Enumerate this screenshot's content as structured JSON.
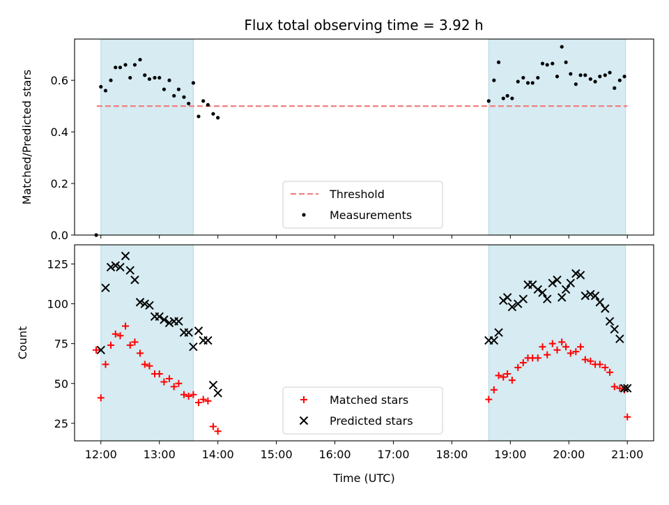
{
  "title": "Flux total observing time = 3.92 h",
  "colors": {
    "band": "#add8e6",
    "threshold": "#f08080",
    "measurement": "#000000",
    "matched": "#ff0000",
    "predicted": "#000000"
  },
  "chart_data": [
    {
      "type": "scatter",
      "name": "ratio-panel",
      "ylabel": "Matched/Predicted stars",
      "xlim": [
        11.55,
        21.45
      ],
      "ylim": [
        0.0,
        0.76
      ],
      "yticks": [
        "0.0",
        "0.2",
        "0.4",
        "0.6"
      ],
      "ytick_values": [
        0.0,
        0.2,
        0.4,
        0.6
      ],
      "grid": false,
      "shaded_ranges": [
        [
          12.0,
          13.58
        ],
        [
          18.63,
          20.97
        ]
      ],
      "threshold": {
        "name": "Threshold",
        "y": 0.5,
        "x_range": [
          11.93,
          21.0
        ],
        "style": "dashed"
      },
      "legend": {
        "placement": "bottom-center",
        "entries": [
          "Threshold",
          "Measurements"
        ]
      },
      "series": [
        {
          "name": "Measurements",
          "marker": "dot",
          "x": [
            11.92,
            12.0,
            12.08,
            12.17,
            12.25,
            12.33,
            12.42,
            12.5,
            12.58,
            12.67,
            12.75,
            12.83,
            12.92,
            13.0,
            13.08,
            13.17,
            13.25,
            13.33,
            13.42,
            13.5,
            13.58,
            13.67,
            13.75,
            13.83,
            13.92,
            14.0,
            18.63,
            18.72,
            18.8,
            18.88,
            18.95,
            19.03,
            19.13,
            19.22,
            19.3,
            19.38,
            19.47,
            19.55,
            19.63,
            19.72,
            19.8,
            19.88,
            19.95,
            20.03,
            20.12,
            20.2,
            20.28,
            20.37,
            20.45,
            20.53,
            20.62,
            20.7,
            20.78,
            20.87,
            20.95
          ],
          "y": [
            0.0,
            0.575,
            0.56,
            0.6,
            0.65,
            0.65,
            0.66,
            0.61,
            0.66,
            0.68,
            0.62,
            0.605,
            0.61,
            0.61,
            0.565,
            0.6,
            0.54,
            0.565,
            0.535,
            0.51,
            0.59,
            0.46,
            0.52,
            0.505,
            0.47,
            0.455,
            0.52,
            0.6,
            0.67,
            0.53,
            0.54,
            0.53,
            0.595,
            0.61,
            0.59,
            0.59,
            0.61,
            0.665,
            0.66,
            0.665,
            0.615,
            0.73,
            0.67,
            0.625,
            0.585,
            0.62,
            0.62,
            0.605,
            0.595,
            0.615,
            0.62,
            0.63,
            0.57,
            0.6,
            0.615
          ]
        }
      ]
    },
    {
      "type": "scatter",
      "name": "count-panel",
      "xlabel": "Time (UTC)",
      "ylabel": "Count",
      "xlim": [
        11.55,
        21.45
      ],
      "ylim": [
        14,
        137
      ],
      "yticks": [
        "25",
        "50",
        "75",
        "100",
        "125"
      ],
      "ytick_values": [
        25,
        50,
        75,
        100,
        125
      ],
      "xticks": [
        "12:00",
        "13:00",
        "14:00",
        "15:00",
        "16:00",
        "17:00",
        "18:00",
        "19:00",
        "20:00",
        "21:00"
      ],
      "xtick_values": [
        12,
        13,
        14,
        15,
        16,
        17,
        18,
        19,
        20,
        21
      ],
      "grid": false,
      "shaded_ranges": [
        [
          12.0,
          13.58
        ],
        [
          18.63,
          20.97
        ]
      ],
      "legend": {
        "placement": "bottom-center",
        "entries": [
          "Matched stars",
          "Predicted stars"
        ]
      },
      "series": [
        {
          "name": "Matched stars",
          "marker": "plus",
          "x": [
            11.92,
            12.0,
            12.08,
            12.17,
            12.25,
            12.33,
            12.42,
            12.5,
            12.58,
            12.67,
            12.75,
            12.83,
            12.92,
            13.0,
            13.08,
            13.17,
            13.25,
            13.33,
            13.42,
            13.5,
            13.58,
            13.67,
            13.75,
            13.83,
            13.92,
            14.0,
            18.63,
            18.72,
            18.8,
            18.88,
            18.95,
            19.03,
            19.13,
            19.22,
            19.3,
            19.38,
            19.47,
            19.55,
            19.63,
            19.72,
            19.8,
            19.88,
            19.95,
            20.03,
            20.12,
            20.2,
            20.28,
            20.37,
            20.45,
            20.53,
            20.62,
            20.7,
            20.78,
            20.87,
            20.95,
            21.0
          ],
          "y": [
            71,
            41,
            62,
            74,
            81,
            80,
            86,
            74,
            76,
            69,
            62,
            61,
            56,
            56,
            51,
            53,
            48,
            50,
            43,
            42,
            43,
            38,
            40,
            39,
            23,
            20,
            40,
            46,
            55,
            54,
            56,
            52,
            60,
            63,
            66,
            66,
            66,
            73,
            68,
            75,
            71,
            76,
            73,
            69,
            70,
            73,
            65,
            64,
            62,
            62,
            60,
            57,
            48,
            47,
            46,
            29
          ]
        },
        {
          "name": "Predicted stars",
          "marker": "x",
          "x": [
            12.0,
            12.08,
            12.17,
            12.25,
            12.33,
            12.42,
            12.5,
            12.58,
            12.67,
            12.75,
            12.83,
            12.92,
            13.0,
            13.08,
            13.17,
            13.25,
            13.33,
            13.42,
            13.5,
            13.58,
            13.67,
            13.75,
            13.83,
            13.92,
            14.0,
            18.63,
            18.72,
            18.8,
            18.88,
            18.95,
            19.03,
            19.13,
            19.22,
            19.3,
            19.38,
            19.47,
            19.55,
            19.63,
            19.72,
            19.8,
            19.88,
            19.95,
            20.03,
            20.12,
            20.2,
            20.28,
            20.37,
            20.45,
            20.53,
            20.62,
            20.7,
            20.78,
            20.87,
            20.95,
            21.0
          ],
          "y": [
            71,
            110,
            123,
            124,
            123,
            130,
            121,
            115,
            101,
            100,
            99,
            92,
            92,
            90,
            88,
            89,
            89,
            82,
            82,
            73,
            83,
            77,
            77,
            49,
            44,
            77,
            77,
            82,
            102,
            104,
            98,
            100,
            103,
            112,
            112,
            109,
            107,
            103,
            113,
            115,
            104,
            109,
            113,
            119,
            118,
            105,
            106,
            105,
            101,
            97,
            89,
            84,
            78,
            47,
            47
          ]
        }
      ]
    }
  ]
}
